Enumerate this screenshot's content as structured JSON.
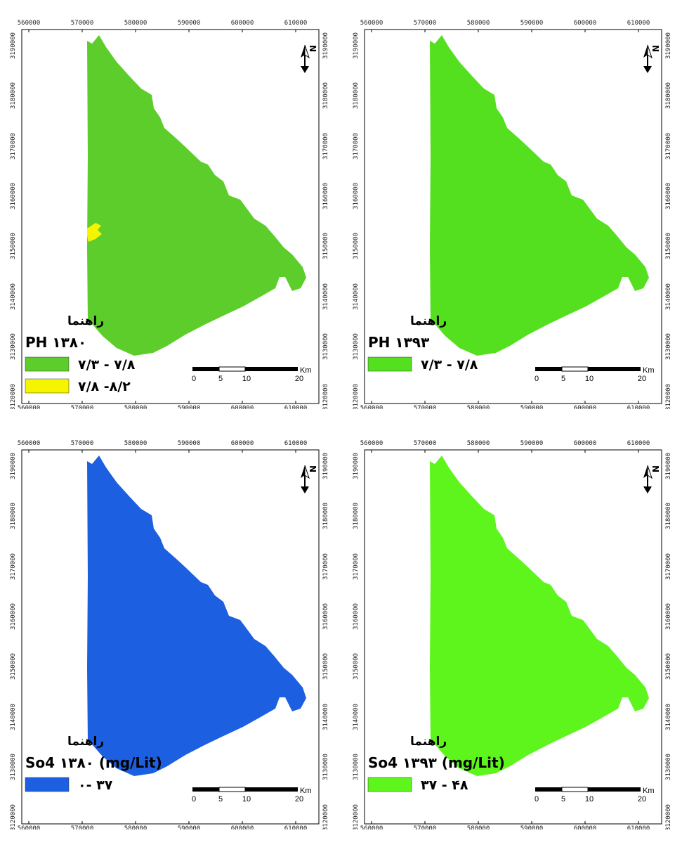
{
  "colors": {
    "green_a": "#5ccd2a",
    "green_b": "#55e01f",
    "green_c": "#5df51c",
    "yellow": "#f5f500",
    "blue": "#1c5fe1"
  },
  "x_ticks": [
    "560000",
    "570000",
    "580000",
    "590000",
    "600000",
    "610000"
  ],
  "y_ticks": [
    "3190000",
    "3180000",
    "3170000",
    "3160000",
    "3150000",
    "3140000",
    "3130000",
    "3120000"
  ],
  "north": {
    "letter": "N"
  },
  "scalebar": {
    "unit": "Km",
    "labels": [
      "0",
      "5",
      "10",
      "20"
    ]
  },
  "panels": [
    {
      "id": "ph-1380",
      "fill_color": "#5ccd2a",
      "legend_heading": "راهنما",
      "legend_title": "PH ۱۳۸۰",
      "legend_items": [
        {
          "color": "#5ccd2a",
          "label": "۷/۳ - ۷/۸"
        },
        {
          "color": "#f5f500",
          "label": "۷/۸ -۸/۲"
        }
      ]
    },
    {
      "id": "ph-1393",
      "fill_color": "#55e01f",
      "legend_heading": "راهنما",
      "legend_title": "PH ۱۳۹۳",
      "legend_items": [
        {
          "color": "#55e01f",
          "label": "۷/۳ - ۷/۸"
        }
      ]
    },
    {
      "id": "so4-1380",
      "fill_color": "#1c5fe1",
      "legend_heading": "راهنما",
      "legend_title": "So4 ۱۳۸۰ (mg/Lit)",
      "legend_items": [
        {
          "color": "#1c5fe1",
          "label": "۰- ۳۷"
        }
      ]
    },
    {
      "id": "so4-1393",
      "fill_color": "#5df51c",
      "legend_heading": "راهنما",
      "legend_title": "So4 ۱۳۹۳ (mg/Lit)",
      "legend_items": [
        {
          "color": "#5df51c",
          "label": "۳۷ - ۴۸"
        }
      ]
    }
  ]
}
